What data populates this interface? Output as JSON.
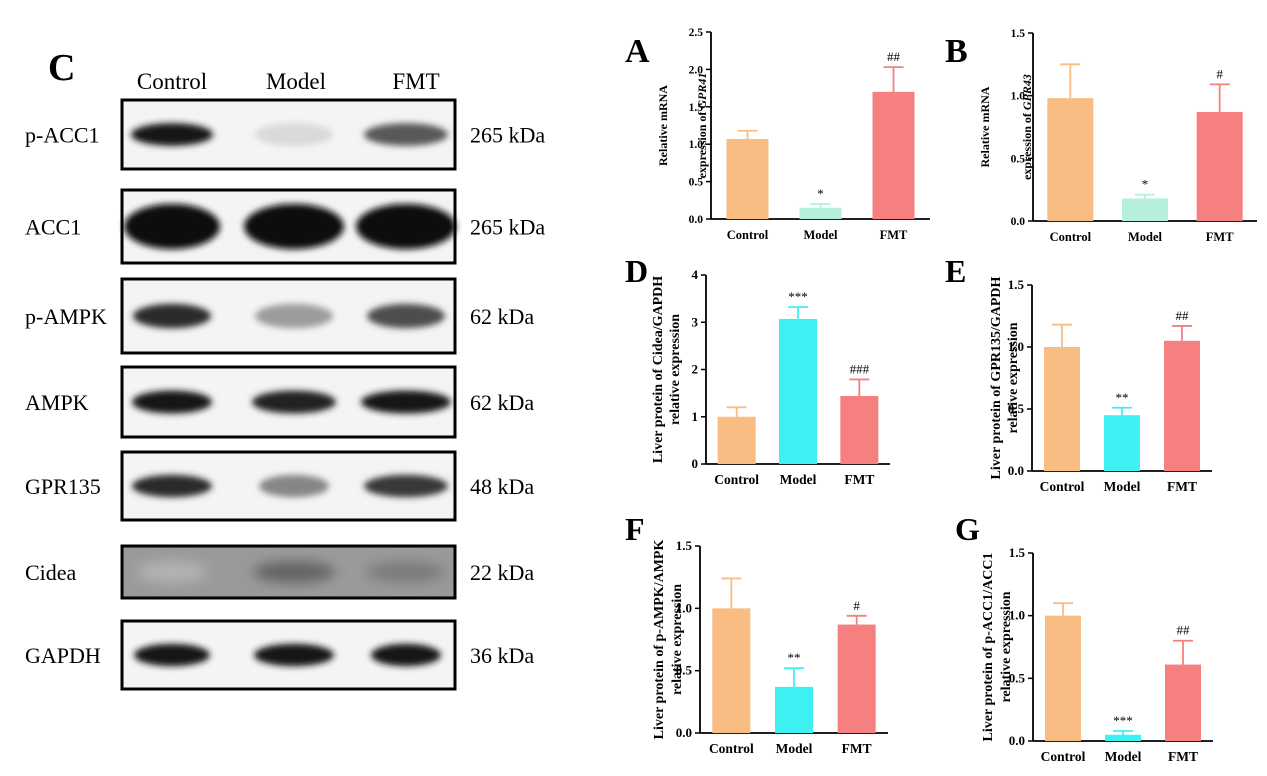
{
  "blot": {
    "panel_letter": "C",
    "lanes": [
      "Control",
      "Model",
      "FMT"
    ],
    "rows": [
      {
        "protein": "p-ACC1",
        "size": "265 kDa",
        "band_intensity": [
          0.95,
          0.08,
          0.65
        ],
        "background": "light"
      },
      {
        "protein": "ACC1",
        "size": "265 kDa",
        "band_intensity": [
          1.0,
          1.0,
          1.0
        ],
        "background": "light"
      },
      {
        "protein": "p-AMPK",
        "size": "62 kDa",
        "band_intensity": [
          0.85,
          0.35,
          0.7
        ],
        "background": "light"
      },
      {
        "protein": "AMPK",
        "size": "62 kDa",
        "band_intensity": [
          0.95,
          0.9,
          0.95
        ],
        "background": "light"
      },
      {
        "protein": "GPR135",
        "size": "48 kDa",
        "band_intensity": [
          0.85,
          0.45,
          0.8
        ],
        "background": "light"
      },
      {
        "protein": "Cidea",
        "size": "22 kDa",
        "band_intensity": [
          0.25,
          0.6,
          0.5
        ],
        "background": "dark"
      },
      {
        "protein": "GAPDH",
        "size": "36 kDa",
        "band_intensity": [
          0.95,
          0.95,
          0.95
        ],
        "background": "light"
      }
    ]
  },
  "colors": {
    "control": "#f9bd83",
    "model_mrna": "#b6f0dd",
    "model_protein": "#3ff0f2",
    "fmt": "#f6807f"
  },
  "chart_data": [
    {
      "panel": "A",
      "type": "bar",
      "ylabel_lines": [
        "Relative mRNA",
        "expression of GPR41"
      ],
      "ylabel_italic_token": "GPR41",
      "categories": [
        "Control",
        "Model",
        "FMT"
      ],
      "values": [
        1.07,
        0.15,
        1.7
      ],
      "errors": [
        0.11,
        0.05,
        0.33
      ],
      "annotations": [
        "",
        "*",
        "##"
      ],
      "ylim": [
        0,
        2.5
      ],
      "yticks": [
        "0.0",
        "0.5",
        "1.0",
        "1.5",
        "2.0",
        "2.5"
      ],
      "colors": [
        "#f9bd83",
        "#b6f0dd",
        "#f6807f"
      ]
    },
    {
      "panel": "B",
      "type": "bar",
      "ylabel_lines": [
        "Relative mRNA",
        "expression of GPR43"
      ],
      "ylabel_italic_token": "GPR43",
      "categories": [
        "Control",
        "Model",
        "FMT"
      ],
      "values": [
        0.98,
        0.18,
        0.87
      ],
      "errors": [
        0.27,
        0.03,
        0.22
      ],
      "annotations": [
        "",
        "*",
        "#"
      ],
      "ylim": [
        0,
        1.5
      ],
      "yticks": [
        "0.0",
        "0.5",
        "1.0",
        "1.5"
      ],
      "colors": [
        "#f9bd83",
        "#b6f0dd",
        "#f6807f"
      ]
    },
    {
      "panel": "D",
      "type": "bar",
      "ylabel_lines": [
        "Liver protein of Cidea/GAPDH",
        "relative expression"
      ],
      "categories": [
        "Control",
        "Model",
        "FMT"
      ],
      "values": [
        1.0,
        3.07,
        1.44
      ],
      "errors": [
        0.2,
        0.25,
        0.35
      ],
      "annotations": [
        "",
        "***",
        "###"
      ],
      "ylim": [
        0,
        4
      ],
      "yticks": [
        "0",
        "1",
        "2",
        "3",
        "4"
      ],
      "colors": [
        "#f9bd83",
        "#3ff0f2",
        "#f6807f"
      ]
    },
    {
      "panel": "E",
      "type": "bar",
      "ylabel_lines": [
        "Liver protein of GPR135/GAPDH",
        "relative expression"
      ],
      "categories": [
        "Control",
        "Model",
        "FMT"
      ],
      "values": [
        1.0,
        0.45,
        1.05
      ],
      "errors": [
        0.18,
        0.06,
        0.12
      ],
      "annotations": [
        "",
        "**",
        "##"
      ],
      "ylim": [
        0,
        1.5
      ],
      "yticks": [
        "0.0",
        "0.5",
        "1.0",
        "1.5"
      ],
      "colors": [
        "#f9bd83",
        "#3ff0f2",
        "#f6807f"
      ]
    },
    {
      "panel": "F",
      "type": "bar",
      "ylabel_lines": [
        "Liver protein of p-AMPK/AMPK",
        "relative expression"
      ],
      "categories": [
        "Control",
        "Model",
        "FMT"
      ],
      "values": [
        1.0,
        0.37,
        0.87
      ],
      "errors": [
        0.24,
        0.15,
        0.07
      ],
      "annotations": [
        "",
        "**",
        "#"
      ],
      "ylim": [
        0,
        1.5
      ],
      "yticks": [
        "0.0",
        "0.5",
        "1.0",
        "1.5"
      ],
      "colors": [
        "#f9bd83",
        "#3ff0f2",
        "#f6807f"
      ]
    },
    {
      "panel": "G",
      "type": "bar",
      "ylabel_lines": [
        "Liver protein of p-ACC1/ACC1",
        "relative expression"
      ],
      "categories": [
        "Control",
        "Model",
        "FMT"
      ],
      "values": [
        1.0,
        0.05,
        0.61
      ],
      "errors": [
        0.1,
        0.03,
        0.19
      ],
      "annotations": [
        "",
        "***",
        "##"
      ],
      "ylim": [
        0,
        1.5
      ],
      "yticks": [
        "0.0",
        "0.5",
        "1.0",
        "1.5"
      ],
      "colors": [
        "#f9bd83",
        "#3ff0f2",
        "#f6807f"
      ]
    }
  ]
}
